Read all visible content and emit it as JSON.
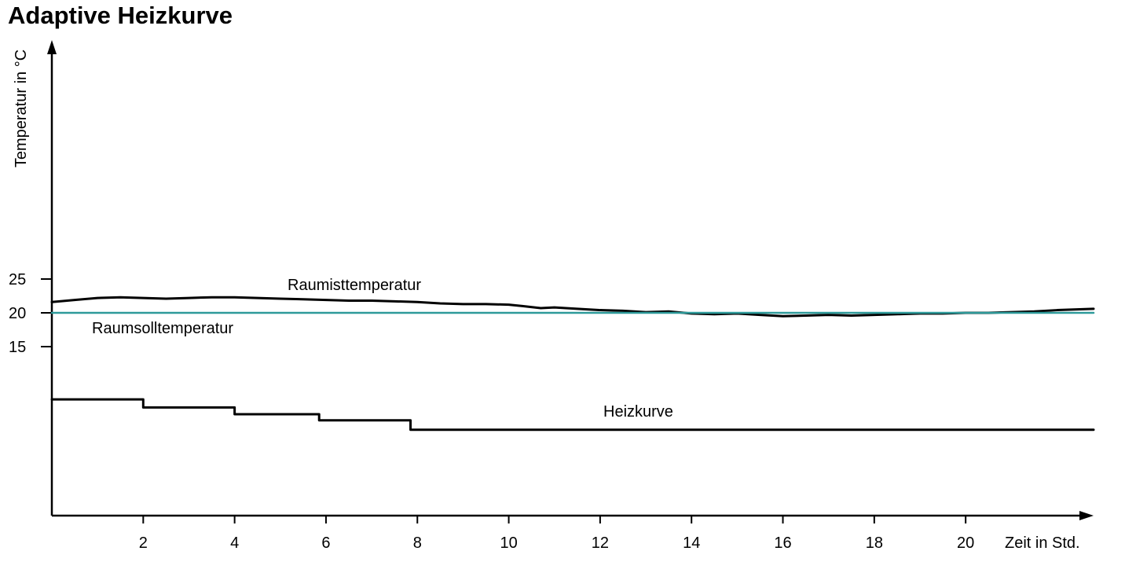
{
  "title": "Adaptive Heizkurve",
  "chart_data": {
    "type": "line",
    "title": "Adaptive Heizkurve",
    "xlabel": "Zeit in Std.",
    "ylabel": "Temperatur in °C",
    "xlim": [
      0,
      22.8
    ],
    "ylim": [
      -40,
      55
    ],
    "x_ticks": [
      2,
      4,
      6,
      8,
      10,
      12,
      14,
      16,
      18,
      20
    ],
    "y_ticks": [
      15,
      20,
      25
    ],
    "grid": false,
    "series": [
      {
        "name": "Raumisttemperatur",
        "color": "#000000",
        "x": [
          0,
          0.5,
          1,
          1.5,
          2,
          2.5,
          3,
          3.5,
          4,
          4.5,
          5,
          5.5,
          6,
          6.5,
          7,
          7.5,
          8,
          8.5,
          9,
          9.5,
          10,
          10.3,
          10.7,
          11,
          11.5,
          12,
          12.5,
          13,
          13.5,
          14,
          14.5,
          15,
          15.5,
          16,
          16.5,
          17,
          17.5,
          18,
          18.5,
          19,
          19.5,
          20,
          20.5,
          21,
          21.5,
          22,
          22.8
        ],
        "values": [
          21.6,
          21.9,
          22.2,
          22.3,
          22.2,
          22.1,
          22.2,
          22.3,
          22.3,
          22.2,
          22.1,
          22.0,
          21.9,
          21.8,
          21.8,
          21.7,
          21.6,
          21.4,
          21.3,
          21.3,
          21.2,
          21.0,
          20.7,
          20.8,
          20.6,
          20.4,
          20.3,
          20.1,
          20.2,
          19.9,
          19.8,
          19.9,
          19.7,
          19.5,
          19.6,
          19.7,
          19.6,
          19.7,
          19.8,
          19.9,
          19.9,
          20.0,
          20.0,
          20.1,
          20.2,
          20.4,
          20.6
        ]
      },
      {
        "name": "Raumsolltemperatur",
        "color": "#2e9a9a",
        "x": [
          0,
          22.8
        ],
        "values": [
          20,
          20
        ]
      },
      {
        "name": "Heizkurve",
        "color": "#000000",
        "step": true,
        "x": [
          0,
          2,
          4,
          5.85,
          7.85,
          22.8
        ],
        "values": [
          7.2,
          6.0,
          5.0,
          4.1,
          2.7,
          2.7
        ]
      }
    ]
  }
}
